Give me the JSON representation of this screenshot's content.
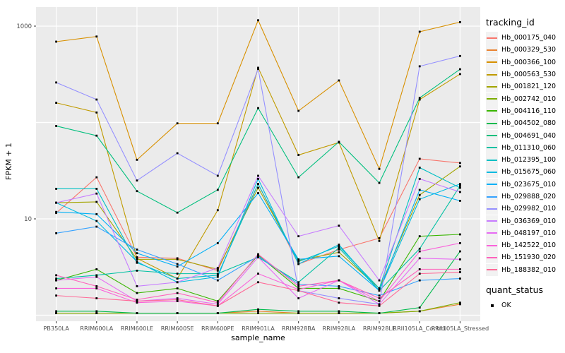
{
  "chart_data": {
    "type": "line",
    "title": "",
    "xlabel": "sample_name",
    "ylabel": "FPKM + 1",
    "y_scale": "log10",
    "y_ticks": [
      10,
      1000
    ],
    "grid_values": [
      1,
      10,
      100,
      1000
    ],
    "ylim_log": [
      0.93,
      1585
    ],
    "legend_position": "right",
    "point_shape": "black-square",
    "categories": [
      "PB350LA",
      "RRIM600LA",
      "RRIM600LE",
      "RRIM600SE",
      "RRIM600PE",
      "RRIM901LA",
      "RRIM928BA",
      "RRIM928LA",
      "RRIM928LE",
      "RRII105LA_Control",
      "RRII105LA_Stressed"
    ],
    "series": [
      {
        "name": "Hb_000175_040",
        "color": "#F8766D",
        "values": [
          11.5,
          27,
          4.0,
          3.9,
          2.9,
          23,
          3.4,
          4.8,
          6.3,
          42,
          38
        ]
      },
      {
        "name": "Hb_000329_530",
        "color": "#EA8331",
        "values": [
          1.05,
          1.05,
          1.05,
          1.05,
          1.05,
          1.1,
          1.05,
          1.05,
          1.05,
          1.1,
          1.3
        ]
      },
      {
        "name": "Hb_000366_100",
        "color": "#D89000",
        "values": [
          690,
          780,
          41,
          98,
          98,
          1150,
          132,
          273,
          33,
          875,
          1100
        ]
      },
      {
        "name": "Hb_000563_530",
        "color": "#C09B00",
        "values": [
          160,
          127,
          3.9,
          2.4,
          12.3,
          370,
          46,
          62,
          5.9,
          173,
          318
        ]
      },
      {
        "name": "Hb_001821_120",
        "color": "#A3A500",
        "values": [
          14.7,
          15,
          3.8,
          3.8,
          3.0,
          21,
          3.7,
          4.5,
          1.9,
          17.7,
          35
        ]
      },
      {
        "name": "Hb_002742_010",
        "color": "#7CAE00",
        "values": [
          1.05,
          1.05,
          1.05,
          1.05,
          1.05,
          1.05,
          1.05,
          1.05,
          1.05,
          1.1,
          1.35
        ]
      },
      {
        "name": "Hb_004116_110",
        "color": "#39B600",
        "values": [
          2.3,
          3.0,
          1.7,
          1.9,
          1.4,
          4.2,
          1.9,
          1.9,
          1.4,
          6.6,
          6.9
        ]
      },
      {
        "name": "Hb_004502_080",
        "color": "#00BB4E",
        "values": [
          1.1,
          1.1,
          1.05,
          1.05,
          1.05,
          1.15,
          1.1,
          1.1,
          1.05,
          1.2,
          4.6
        ]
      },
      {
        "name": "Hb_004691_040",
        "color": "#00BF7D",
        "values": [
          92,
          73,
          19.4,
          11.6,
          20,
          141,
          27,
          63,
          23.6,
          180,
          357
        ]
      },
      {
        "name": "Hb_011310_060",
        "color": "#00C1A3",
        "values": [
          2.4,
          2.6,
          2.9,
          2.7,
          2.7,
          4.0,
          2.2,
          5.0,
          1.8,
          4.9,
          22
        ]
      },
      {
        "name": "Hb_012395_100",
        "color": "#00BFC4",
        "values": [
          20.5,
          20.5,
          3.5,
          2.4,
          2.6,
          23,
          3.6,
          5.2,
          1.9,
          34,
          21
        ]
      },
      {
        "name": "Hb_015675_060",
        "color": "#00BAE0",
        "values": [
          14.7,
          9.5,
          3.6,
          2.2,
          2.5,
          26,
          3.4,
          5.4,
          1.8,
          16,
          23
        ]
      },
      {
        "name": "Hb_023675_010",
        "color": "#00B0F6",
        "values": [
          11.8,
          11.2,
          4.4,
          3.2,
          5.6,
          18.5,
          3.8,
          4.1,
          1.8,
          20,
          15.4
        ]
      },
      {
        "name": "Hb_029888_020",
        "color": "#35A2FF",
        "values": [
          7.1,
          8.3,
          4.8,
          3.4,
          2.3,
          4.1,
          2.1,
          2.0,
          1.6,
          2.3,
          2.4
        ]
      },
      {
        "name": "Hb_029982_010",
        "color": "#9590FF",
        "values": [
          260,
          173,
          25,
          48,
          28,
          360,
          1.8,
          1.5,
          1.3,
          383,
          490
        ]
      },
      {
        "name": "Hb_036369_010",
        "color": "#C77CFF",
        "values": [
          14.7,
          18.3,
          2.0,
          2.2,
          3.1,
          28,
          6.6,
          8.5,
          2.3,
          26,
          19
        ]
      },
      {
        "name": "Hb_048197_010",
        "color": "#E76BF3",
        "values": [
          2.3,
          2.5,
          1.4,
          1.5,
          1.3,
          4.0,
          1.5,
          2.3,
          1.3,
          3.9,
          3.8
        ]
      },
      {
        "name": "Hb_142522_010",
        "color": "#FA62DB",
        "values": [
          1.9,
          1.9,
          1.35,
          1.4,
          1.25,
          2.7,
          1.85,
          2.3,
          1.4,
          4.6,
          5.6
        ]
      },
      {
        "name": "Hb_151930_020",
        "color": "#FF62BC",
        "values": [
          2.6,
          2.0,
          1.45,
          1.7,
          1.35,
          4.3,
          2.0,
          2.3,
          1.5,
          3.0,
          3.0
        ]
      },
      {
        "name": "Hb_188382_010",
        "color": "#FF6A98",
        "values": [
          1.6,
          1.5,
          1.4,
          1.45,
          1.25,
          2.2,
          1.8,
          1.35,
          1.25,
          2.7,
          2.8
        ]
      }
    ]
  },
  "legend": {
    "title": "tracking_id",
    "status_title": "quant_status",
    "status_items": [
      {
        "label": "OK",
        "color": "#000000"
      }
    ]
  },
  "colors": {
    "panel_background": "#EBEBEB",
    "gridline": "#FFFFFF",
    "tick_text": "#4D4D4D",
    "point": "#000000"
  }
}
